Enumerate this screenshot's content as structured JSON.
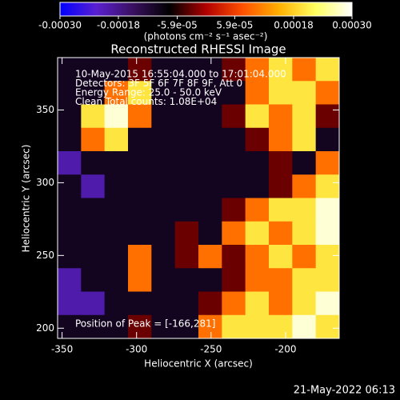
{
  "chart_data": {
    "type": "heatmap",
    "title": "Reconstructed RHESSI Image",
    "xlabel": "Heliocentric X (arcsec)",
    "ylabel": "Heliocentric Y (arcsec)",
    "colorbar_label": "(photons cm⁻² s⁻¹ asec⁻²)",
    "annotations": [
      "10-May-2015 16:55:04.000 to 17:01:04.000",
      "Detectors: 3F 5F 6F 7F 8F 9F, Att 0",
      "Energy Range: 25.0 - 50.0 keV",
      "Clean     Total counts: 1.08E+04"
    ],
    "peak_label": "Position of Peak = [-166,281]",
    "footer": "21-May-2022 06:13",
    "xlim": [
      -353,
      -164
    ],
    "ylim": [
      193,
      386
    ],
    "xticks": [
      -350,
      -300,
      -250,
      -200
    ],
    "yticks": [
      200,
      250,
      300,
      350
    ],
    "zlim": [
      -0.0003,
      0.0003
    ],
    "colorbar_ticks": [
      {
        "value": -0.0003,
        "label": "-0.00030"
      },
      -0.00018,
      {
        "value": -5.9e-05,
        "label": "-5.9e-05"
      },
      {
        "value": 5.9e-05,
        "label": "5.9e-05"
      },
      0.00018,
      {
        "value": 0.0003,
        "label": "0.00030"
      }
    ],
    "colorscale": [
      "#0000ff",
      "#5a20d0",
      "#3a1060",
      "#000000",
      "#b00000",
      "#ff5000",
      "#ffb000",
      "#ffff60",
      "#ffffff"
    ],
    "z": [
      [
        -0.0001,
        -0.0001,
        -0.0001,
        -3e-05,
        -0.0001,
        -0.0001,
        -0.0001,
        -3e-05,
        0.0001,
        0.0002,
        0.0001,
        0.0002
      ],
      [
        -0.0001,
        -0.0001,
        0.0001,
        0.0002,
        -0.0001,
        -0.0001,
        -0.0001,
        -0.0001,
        0.0001,
        0.0002,
        0.0002,
        0.0001
      ],
      [
        -0.0001,
        0.0002,
        0.00028,
        0.0001,
        -0.0001,
        -0.0001,
        -0.0001,
        -3e-05,
        0.0002,
        0.0001,
        0.0002,
        -3e-05
      ],
      [
        -0.0001,
        0.0001,
        0.0002,
        -0.0001,
        -0.0001,
        -0.0001,
        -0.0001,
        -0.0001,
        -3e-05,
        0.0001,
        0.0002,
        -0.0001
      ],
      [
        -0.0002,
        -0.0001,
        -0.0001,
        -0.0001,
        -0.0001,
        -0.0001,
        -0.0001,
        -0.0001,
        -0.0001,
        -3e-05,
        -0.0001,
        0.0001
      ],
      [
        -0.0001,
        -0.0002,
        -0.0001,
        -0.0001,
        -0.0001,
        -0.0001,
        -0.0001,
        -0.0001,
        -0.0001,
        -3e-05,
        0.0001,
        0.0002
      ],
      [
        -0.0001,
        -0.0001,
        -0.0001,
        -0.0001,
        -0.0001,
        -0.0001,
        -0.0001,
        -3e-05,
        0.0001,
        0.0002,
        0.0002,
        0.00028
      ],
      [
        -0.0001,
        -0.0001,
        -0.0001,
        -0.0001,
        -0.0001,
        -3e-05,
        -0.0001,
        0.0001,
        0.0002,
        0.0001,
        0.0002,
        0.00028
      ],
      [
        -0.0001,
        -0.0001,
        -0.0001,
        0.0001,
        -0.0001,
        -3e-05,
        0.0001,
        -3e-05,
        0.0001,
        0.0002,
        0.0001,
        0.0002
      ],
      [
        -0.0002,
        -0.0001,
        -0.0001,
        0.0001,
        -0.0001,
        -0.0001,
        -0.0001,
        -3e-05,
        0.0001,
        0.0001,
        0.0002,
        0.0002
      ],
      [
        -0.0002,
        -0.0002,
        -0.0001,
        -0.0001,
        -0.0001,
        -0.0001,
        -3e-05,
        0.0001,
        0.0002,
        0.0001,
        0.0002,
        0.00028
      ],
      [
        -0.0001,
        -0.0001,
        -0.0001,
        -3e-05,
        -0.0001,
        -0.0001,
        0.0001,
        0.0002,
        0.0002,
        0.0002,
        0.00028,
        0.0002
      ]
    ]
  }
}
